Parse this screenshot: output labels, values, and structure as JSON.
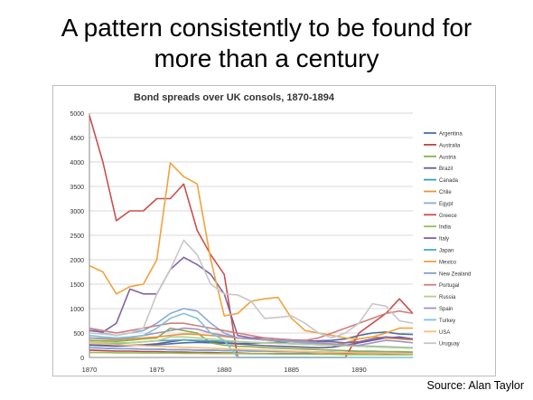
{
  "slide": {
    "title_line1": "A pattern consistently to be found for",
    "title_line2": "more than a century",
    "source": "Source: Alan Taylor"
  },
  "chart_data": {
    "type": "line",
    "title": "Bond spreads over UK consols, 1870-1894",
    "xlabel": "",
    "ylabel": "",
    "xlim": [
      1870,
      1894
    ],
    "ylim": [
      0,
      5000
    ],
    "x_ticks": [
      1870,
      1875,
      1880,
      1885,
      1890
    ],
    "y_ticks": [
      0,
      500,
      1000,
      1500,
      2000,
      2500,
      3000,
      3500,
      4000,
      4500,
      5000
    ],
    "grid": true,
    "legend_position": "right",
    "x": [
      1870,
      1871,
      1872,
      1873,
      1874,
      1875,
      1876,
      1877,
      1878,
      1879,
      1880,
      1881,
      1882,
      1883,
      1884,
      1885,
      1886,
      1887,
      1888,
      1889,
      1890,
      1891,
      1892,
      1893,
      1894
    ],
    "series": [
      {
        "name": "Argentina",
        "color": "#4a6fa5",
        "values": [
          250,
          240,
          230,
          240,
          250,
          260,
          280,
          300,
          310,
          300,
          290,
          280,
          290,
          300,
          310,
          320,
          330,
          340,
          350,
          380,
          450,
          500,
          520,
          480,
          470
        ]
      },
      {
        "name": "Australia",
        "color": "#b94745",
        "values": [
          150,
          140,
          130,
          130,
          120,
          120,
          110,
          110,
          100,
          100,
          90,
          90,
          80,
          80,
          80,
          80,
          80,
          70,
          70,
          70,
          70,
          80,
          80,
          80,
          70
        ]
      },
      {
        "name": "Austria",
        "color": "#8aad4a",
        "values": [
          350,
          340,
          330,
          350,
          380,
          400,
          600,
          550,
          500,
          300,
          250,
          230,
          220,
          200,
          190,
          180,
          170,
          160,
          150,
          140,
          130,
          130,
          120,
          120,
          110
        ]
      },
      {
        "name": "Brazil",
        "color": "#6a5a9a",
        "values": [
          260,
          250,
          240,
          250,
          260,
          280,
          320,
          360,
          340,
          320,
          300,
          280,
          260,
          240,
          230,
          220,
          210,
          200,
          210,
          250,
          300,
          350,
          400,
          420,
          380
        ]
      },
      {
        "name": "Canada",
        "color": "#3aa0b8",
        "values": [
          200,
          190,
          180,
          180,
          170,
          170,
          160,
          160,
          150,
          150,
          140,
          140,
          130,
          130,
          120,
          120,
          110,
          110,
          100,
          100,
          100,
          100,
          90,
          90,
          90
        ]
      },
      {
        "name": "Chile",
        "color": "#e9953a",
        "values": [
          400,
          380,
          360,
          380,
          400,
          420,
          450,
          480,
          470,
          450,
          430,
          400,
          380,
          360,
          340,
          320,
          300,
          280,
          260,
          300,
          380,
          420,
          400,
          380,
          360
        ]
      },
      {
        "name": "Egypt",
        "color": "#8da9d6",
        "values": [
          600,
          500,
          450,
          500,
          550,
          700,
          900,
          1000,
          950,
          700,
          500,
          400,
          380,
          360,
          340,
          320,
          300,
          280,
          260,
          250,
          240,
          230,
          220,
          210,
          200
        ]
      },
      {
        "name": "Greece",
        "color": "#c9504c",
        "values": [
          4950,
          4000,
          2800,
          3000,
          3000,
          3250,
          3250,
          3550,
          2600,
          2100,
          1700,
          0,
          0,
          0,
          0,
          0,
          0,
          0,
          0,
          0,
          500,
          700,
          900,
          1200,
          900
        ]
      },
      {
        "name": "India",
        "color": "#9bbb59",
        "values": [
          100,
          100,
          95,
          95,
          90,
          90,
          90,
          85,
          85,
          80,
          80,
          80,
          75,
          75,
          70,
          70,
          70,
          65,
          65,
          60,
          60,
          60,
          55,
          55,
          55
        ]
      },
      {
        "name": "Italy",
        "color": "#8064a2",
        "values": [
          550,
          520,
          700,
          1400,
          1300,
          1300,
          1800,
          2050,
          1900,
          1700,
          1300,
          450,
          400,
          400,
          380,
          360,
          350,
          330,
          320,
          300,
          320,
          380,
          420,
          400,
          380
        ]
      },
      {
        "name": "Japan",
        "color": "#4bacc6",
        "values": [
          300,
          290,
          280,
          300,
          320,
          340,
          350,
          360,
          350,
          340,
          330,
          320,
          310,
          300,
          290,
          280,
          270,
          260,
          250,
          240,
          230,
          220,
          210,
          200,
          190
        ]
      },
      {
        "name": "Mexico",
        "color": "#f2a23c",
        "values": [
          1880,
          1750,
          1300,
          1450,
          1500,
          2000,
          3980,
          3700,
          3550,
          2000,
          850,
          900,
          1150,
          1200,
          1230,
          800,
          550,
          500,
          450,
          400,
          380,
          420,
          500,
          600,
          600
        ]
      },
      {
        "name": "New Zealand",
        "color": "#7e9ed1",
        "values": [
          200,
          190,
          180,
          180,
          170,
          170,
          160,
          160,
          150,
          150,
          140,
          140,
          130,
          130,
          130,
          120,
          120,
          110,
          110,
          100,
          100,
          100,
          100,
          90,
          90
        ]
      },
      {
        "name": "Portugal",
        "color": "#d07f7d",
        "values": [
          600,
          550,
          500,
          550,
          600,
          650,
          700,
          700,
          650,
          600,
          550,
          500,
          450,
          400,
          380,
          350,
          350,
          400,
          500,
          600,
          700,
          800,
          900,
          950,
          900
        ]
      },
      {
        "name": "Russia",
        "color": "#b7cf8a",
        "values": [
          320,
          310,
          300,
          300,
          320,
          340,
          420,
          420,
          400,
          380,
          350,
          330,
          310,
          300,
          290,
          280,
          270,
          260,
          250,
          240,
          230,
          220,
          210,
          200,
          190
        ]
      },
      {
        "name": "Spain",
        "color": "#a394bf",
        "values": [
          400,
          390,
          380,
          400,
          450,
          500,
          550,
          600,
          580,
          500,
          450,
          400,
          380,
          360,
          350,
          340,
          330,
          300,
          280,
          260,
          250,
          300,
          350,
          330,
          300
        ]
      },
      {
        "name": "Turkey",
        "color": "#7fc4d6",
        "values": [
          450,
          420,
          400,
          420,
          450,
          600,
          800,
          900,
          800,
          500,
          350,
          0,
          0,
          0,
          0,
          0,
          0,
          0,
          0,
          0,
          0,
          0,
          0,
          0,
          0
        ]
      },
      {
        "name": "USA",
        "color": "#f7bd79",
        "values": [
          300,
          280,
          260,
          250,
          240,
          230,
          220,
          210,
          200,
          190,
          180,
          170,
          160,
          150,
          140,
          130,
          120,
          110,
          100,
          100,
          95,
          90,
          90,
          85,
          80
        ]
      },
      {
        "name": "Uruguay",
        "color": "#c7c7c7",
        "values": [
          500,
          480,
          450,
          500,
          600,
          1300,
          1800,
          2400,
          2100,
          1500,
          1300,
          1280,
          1150,
          800,
          820,
          850,
          700,
          500,
          400,
          500,
          700,
          1100,
          1050,
          750,
          700
        ]
      }
    ]
  }
}
